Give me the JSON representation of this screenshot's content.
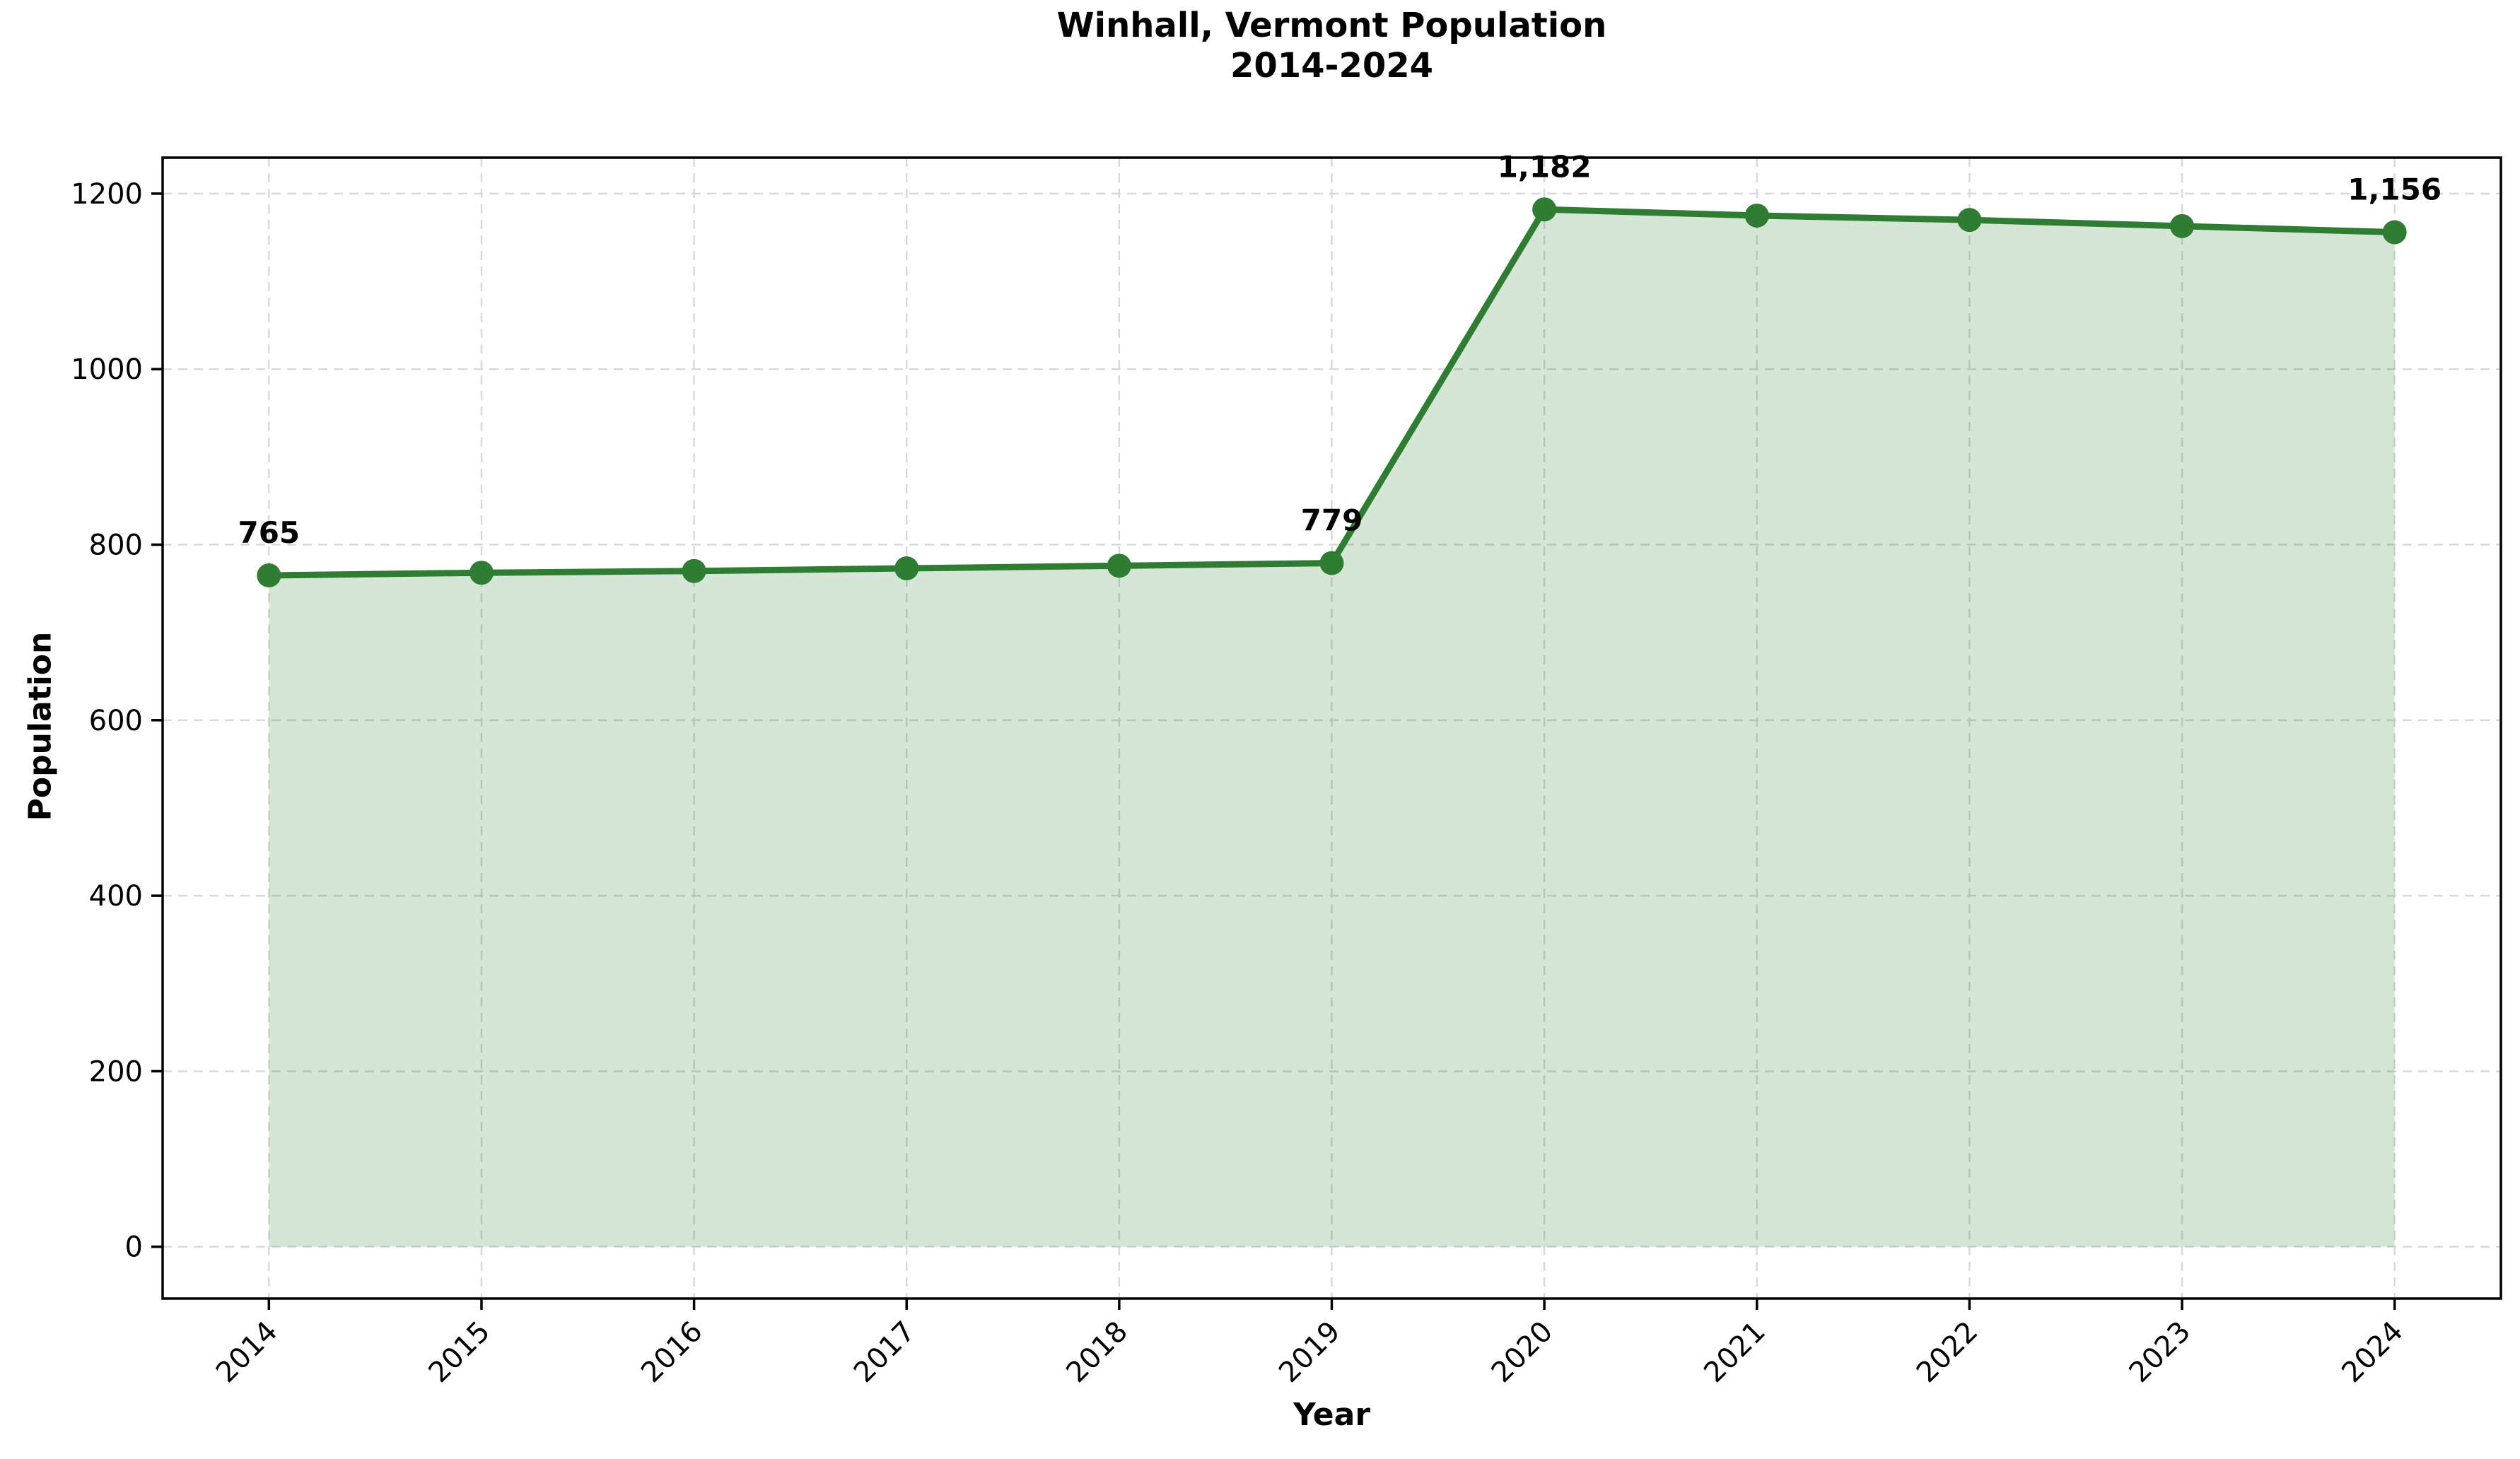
{
  "title": {
    "line1": "Winhall, Vermont Population",
    "line2": "2014-2024"
  },
  "chart_data": {
    "type": "area",
    "title": "Winhall, Vermont Population 2014-2024",
    "x": [
      2014,
      2015,
      2016,
      2017,
      2018,
      2019,
      2020,
      2021,
      2022,
      2023,
      2024
    ],
    "series": [
      {
        "name": "Population",
        "values": [
          765,
          768,
          770,
          773,
          776,
          779,
          1182,
          1175,
          1170,
          1163,
          1156
        ]
      }
    ],
    "xlabel": "Year",
    "ylabel": "Population",
    "xlim": [
      2013.5,
      2024.5
    ],
    "ylim": [
      -59,
      1241
    ],
    "yticks": [
      0,
      200,
      400,
      600,
      800,
      1000,
      1200
    ],
    "xticks": [
      "2014",
      "2015",
      "2016",
      "2017",
      "2018",
      "2019",
      "2020",
      "2021",
      "2022",
      "2023",
      "2024"
    ],
    "grid": true,
    "legend_position": "none",
    "annotations": [
      {
        "year": 2014,
        "value": 765,
        "label": "765"
      },
      {
        "year": 2019,
        "value": 779,
        "label": "779"
      },
      {
        "year": 2020,
        "value": 1182,
        "label": "1,182"
      },
      {
        "year": 2024,
        "value": 1156,
        "label": "1,156"
      }
    ],
    "colors": {
      "line": "#2e7d32",
      "marker": "#2e7d32",
      "fill": "rgba(46,125,50,0.2)",
      "grid": "#d9d9d9",
      "axis": "#000000",
      "text": "#000000"
    }
  }
}
